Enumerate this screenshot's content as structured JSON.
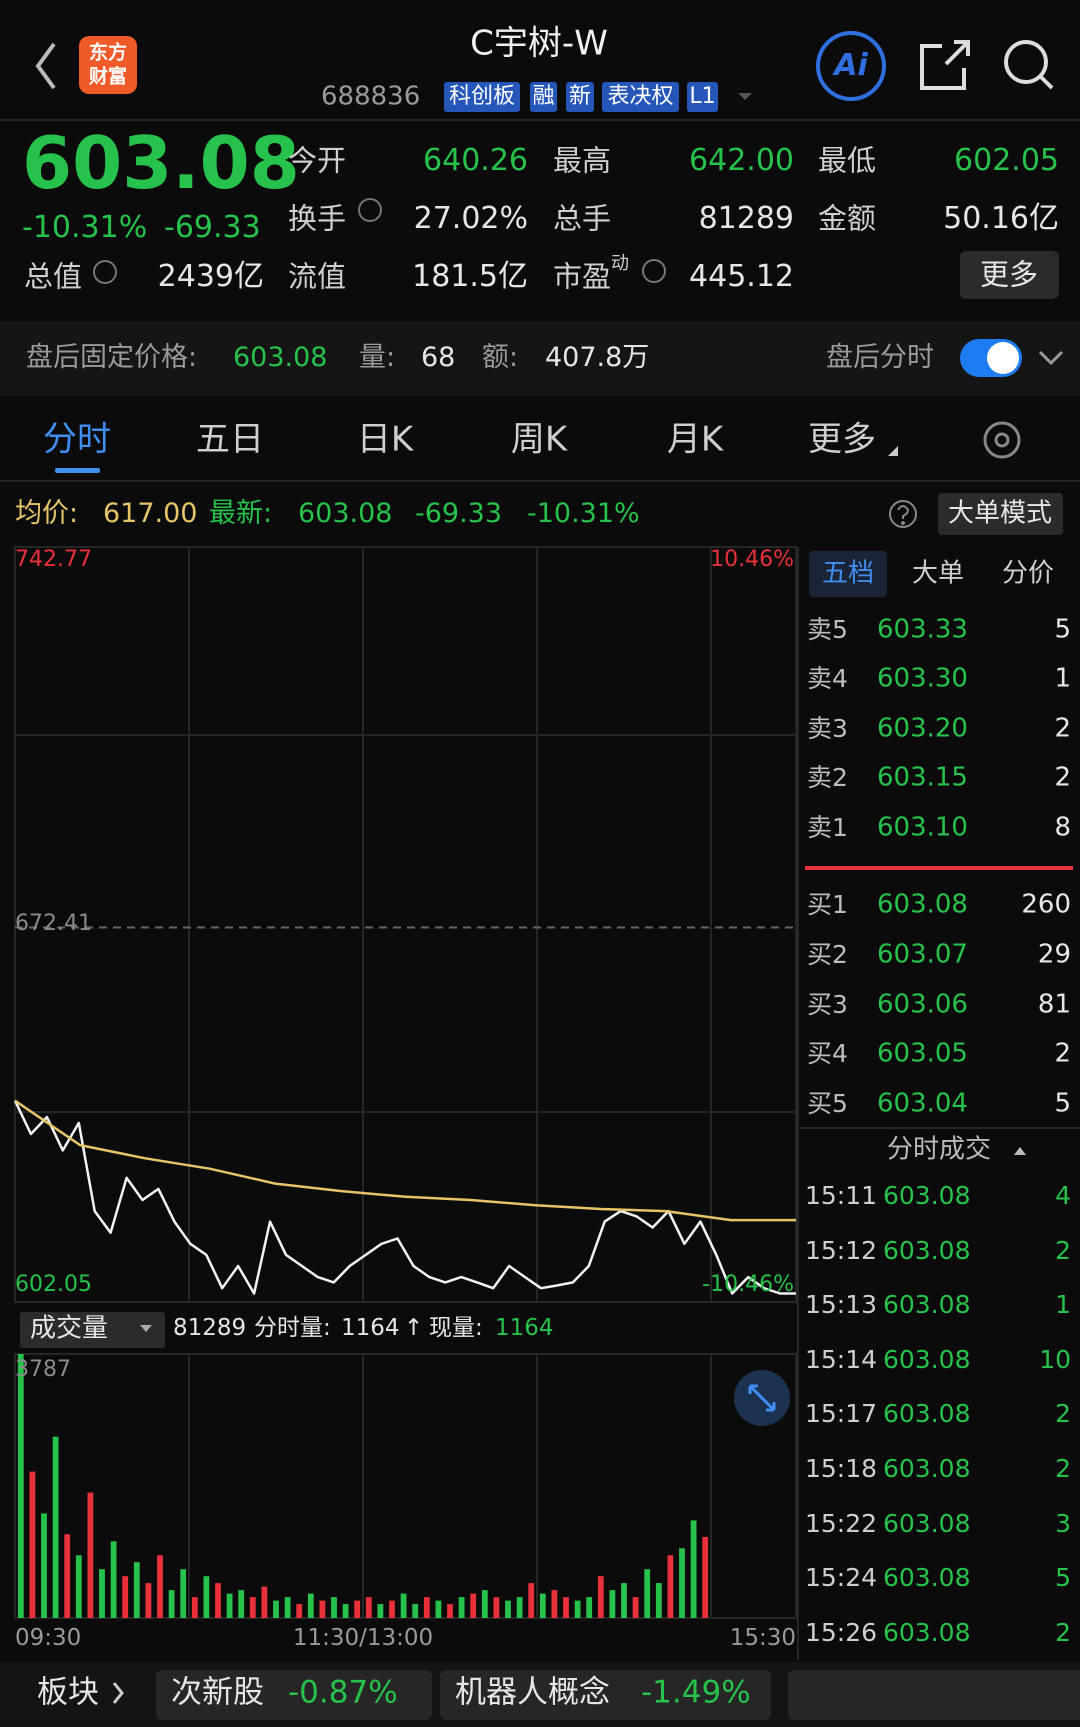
{
  "header": {
    "logo": [
      "东方",
      "财富"
    ],
    "title": "C宇树-W",
    "code": "688836",
    "tags": [
      "科创板",
      "融",
      "新",
      "表决权",
      "L1"
    ],
    "ai": "Ai"
  },
  "quote": {
    "price": "603.08",
    "change_pct": "-10.31%",
    "change": "-69.33",
    "fields": [
      {
        "label": "今开",
        "value": "640.26"
      },
      {
        "label": "最高",
        "value": "642.00"
      },
      {
        "label": "最低",
        "value": "602.05"
      },
      {
        "label": "换手",
        "value": "27.02%"
      },
      {
        "label": "总手",
        "value": "81289"
      },
      {
        "label": "金额",
        "value": "50.16亿"
      },
      {
        "label": "总值",
        "value": "2439亿"
      },
      {
        "label": "流值",
        "value": "181.5亿"
      },
      {
        "label": "市盈",
        "sup": "动",
        "value": "445.12"
      }
    ],
    "more": "更多"
  },
  "after_hours": {
    "label": "盘后固定价格:",
    "price": "603.08",
    "volume_label": "量:",
    "volume": "68",
    "amount_label": "额:",
    "amount": "407.8万",
    "switch_label": "盘后分时"
  },
  "tabs": [
    "分时",
    "五日",
    "日K",
    "周K",
    "月K",
    "更多"
  ],
  "info": {
    "avg_label": "均价:",
    "avg": "617.00",
    "last_label": "最新:",
    "last": "603.08",
    "change": "-69.33",
    "change_pct": "-10.31%",
    "mode": "大单模式"
  },
  "chart_data": [
    {
      "type": "line",
      "ylim": [
        602.05,
        742.77
      ],
      "yticks": [
        602.05,
        672.41,
        742.77
      ],
      "y2lim": [
        -10.46,
        10.46
      ],
      "y2ticks": [
        {
          "value": -10.46,
          "label": "-10.46%"
        },
        {
          "value": 10.46,
          "label": "10.46%"
        }
      ],
      "series": [
        {
          "color": "#f2f2f2",
          "values": [
            639.6,
            633.3,
            636.5,
            630.2,
            635.4,
            618.7,
            614.6,
            625,
            620.8,
            622.9,
            616.7,
            612.5,
            610.4,
            604.1,
            608.3,
            603.1,
            616.7,
            610.4,
            608.3,
            606.2,
            605.2,
            608.3,
            610.4,
            612.5,
            613.5,
            608.3,
            606.2,
            605.2,
            606.2,
            605.2,
            604.1,
            608.3,
            606.2,
            604.1,
            604.6,
            605.2,
            608.3,
            616.7,
            618.7,
            617.7,
            615.6,
            618.7,
            612.5,
            616.7,
            610.4,
            603.1,
            606.2,
            604.1,
            603.1,
            603.1
          ]
        },
        {
          "color": "#e6c46a",
          "values": [
            639.6,
            631.2,
            628.7,
            626.7,
            623.9,
            622.5,
            621.4,
            620.8,
            619.8,
            619.1,
            618.7,
            617,
            617
          ]
        }
      ]
    },
    {
      "type": "bar",
      "volume_label": "成交量",
      "total": "81289",
      "minute_label": "分时量:",
      "minute": "1164",
      "arrow": "↑",
      "current_label": "现量:",
      "current": "1164",
      "ylim": [
        0,
        3787
      ],
      "yticks": [
        3787
      ],
      "x_labels": [
        "09:30",
        "11:30/13:00",
        "15:30"
      ],
      "values": [
        3787,
        2100,
        1500,
        2600,
        1200,
        900,
        1800,
        700,
        1100,
        600,
        800,
        500,
        900,
        400,
        700,
        300,
        600,
        500,
        350,
        400,
        300,
        450,
        250,
        300,
        200,
        350,
        250,
        300,
        200,
        250,
        300,
        200,
        250,
        350,
        200,
        300,
        250,
        200,
        300,
        350,
        400,
        300,
        250,
        300,
        500,
        350,
        400,
        300,
        250,
        300,
        600,
        400,
        500,
        300,
        700,
        500,
        900,
        1000,
        1400,
        1164
      ],
      "colors": [
        "#27c24c",
        "#e8313a",
        "#27c24c",
        "#27c24c",
        "#e8313a",
        "#27c24c",
        "#e8313a",
        "#27c24c",
        "#27c24c",
        "#e8313a",
        "#27c24c",
        "#e8313a",
        "#e8313a",
        "#27c24c",
        "#27c24c",
        "#e8313a",
        "#27c24c",
        "#e8313a",
        "#27c24c",
        "#27c24c",
        "#e8313a",
        "#e8313a",
        "#27c24c",
        "#27c24c",
        "#e8313a",
        "#27c24c",
        "#e8313a",
        "#27c24c",
        "#27c24c",
        "#e8313a",
        "#e8313a",
        "#27c24c",
        "#e8313a",
        "#27c24c",
        "#27c24c",
        "#e8313a",
        "#27c24c",
        "#e8313a",
        "#27c24c",
        "#e8313a",
        "#27c24c",
        "#e8313a",
        "#27c24c",
        "#27c24c",
        "#e8313a",
        "#27c24c",
        "#e8313a",
        "#e8313a",
        "#27c24c",
        "#27c24c",
        "#e8313a",
        "#27c24c",
        "#27c24c",
        "#e8313a",
        "#27c24c",
        "#27c24c",
        "#e8313a",
        "#27c24c",
        "#27c24c",
        "#e8313a"
      ]
    }
  ],
  "order_book": {
    "tabs": [
      "五档",
      "大单",
      "分价"
    ],
    "asks": [
      {
        "label": "卖5",
        "price": "603.33",
        "qty": "5"
      },
      {
        "label": "卖4",
        "price": "603.30",
        "qty": "1"
      },
      {
        "label": "卖3",
        "price": "603.20",
        "qty": "2"
      },
      {
        "label": "卖2",
        "price": "603.15",
        "qty": "2"
      },
      {
        "label": "卖1",
        "price": "603.10",
        "qty": "8"
      }
    ],
    "bids": [
      {
        "label": "买1",
        "price": "603.08",
        "qty": "260"
      },
      {
        "label": "买2",
        "price": "603.07",
        "qty": "29"
      },
      {
        "label": "买3",
        "price": "603.06",
        "qty": "81"
      },
      {
        "label": "买4",
        "price": "603.05",
        "qty": "2"
      },
      {
        "label": "买5",
        "price": "603.04",
        "qty": "5"
      }
    ],
    "trades_title": "分时成交",
    "trades": [
      {
        "time": "15:11",
        "price": "603.08",
        "qty": "4"
      },
      {
        "time": "15:12",
        "price": "603.08",
        "qty": "2"
      },
      {
        "time": "15:13",
        "price": "603.08",
        "qty": "1"
      },
      {
        "time": "15:14",
        "price": "603.08",
        "qty": "10"
      },
      {
        "time": "15:17",
        "price": "603.08",
        "qty": "2"
      },
      {
        "time": "15:18",
        "price": "603.08",
        "qty": "2"
      },
      {
        "time": "15:22",
        "price": "603.08",
        "qty": "3"
      },
      {
        "time": "15:24",
        "price": "603.08",
        "qty": "5"
      },
      {
        "time": "15:26",
        "price": "603.08",
        "qty": "2"
      }
    ]
  },
  "sectors": {
    "label": "板块",
    "items": [
      {
        "name": "次新股",
        "change": "-0.87%"
      },
      {
        "name": "机器人概念",
        "change": "-1.49%"
      }
    ]
  }
}
